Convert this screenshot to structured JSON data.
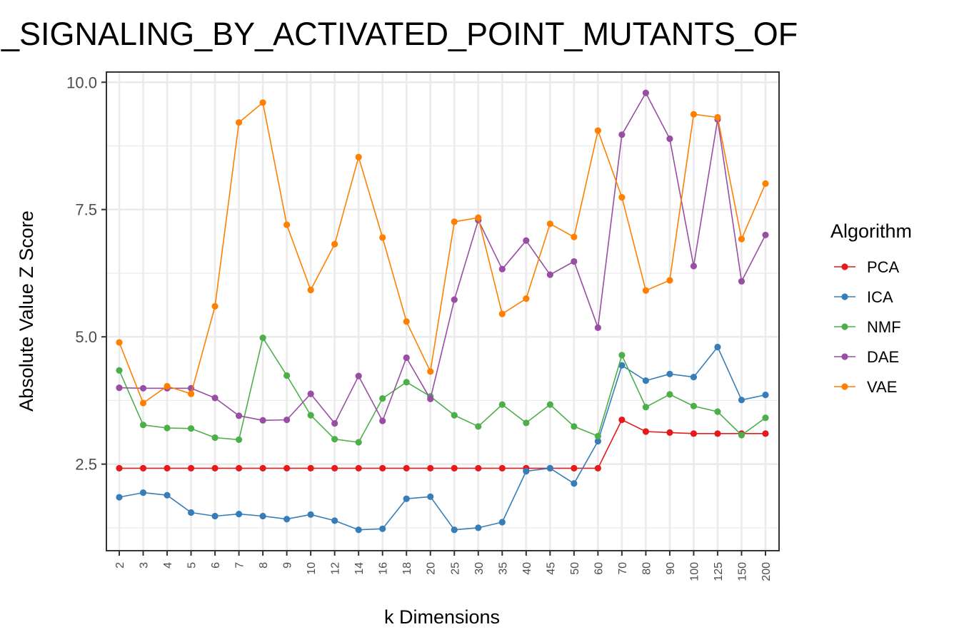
{
  "chart_data": {
    "type": "line",
    "title": "_SIGNALING_BY_ACTIVATED_POINT_MUTANTS_OF",
    "xlabel": "k Dimensions",
    "ylabel": "Absolute Value Z Score",
    "categories": [
      "2",
      "3",
      "4",
      "5",
      "6",
      "7",
      "8",
      "9",
      "10",
      "12",
      "14",
      "16",
      "18",
      "20",
      "25",
      "30",
      "35",
      "40",
      "45",
      "50",
      "60",
      "70",
      "80",
      "90",
      "100",
      "125",
      "150",
      "200"
    ],
    "ylim": [
      0.8,
      10.2
    ],
    "yticks": [
      2.5,
      5.0,
      7.5,
      10.0
    ],
    "ytick_labels": [
      "2.5",
      "5.0",
      "7.5",
      "10.0"
    ],
    "grid": true,
    "legend": {
      "title": "Algorithm",
      "position": "right"
    },
    "series": [
      {
        "name": "PCA",
        "color": "#e41a1c",
        "values": [
          2.42,
          2.42,
          2.42,
          2.42,
          2.42,
          2.42,
          2.42,
          2.42,
          2.42,
          2.42,
          2.42,
          2.42,
          2.42,
          2.42,
          2.42,
          2.42,
          2.42,
          2.42,
          2.42,
          2.42,
          2.42,
          3.37,
          3.14,
          3.12,
          3.1,
          3.1,
          3.1,
          3.1
        ]
      },
      {
        "name": "ICA",
        "color": "#377eb8",
        "values": [
          1.85,
          1.94,
          1.89,
          1.55,
          1.48,
          1.52,
          1.48,
          1.42,
          1.51,
          1.39,
          1.21,
          1.23,
          1.82,
          1.86,
          1.21,
          1.25,
          1.36,
          2.36,
          2.42,
          2.12,
          2.95,
          4.44,
          4.14,
          4.27,
          4.21,
          4.8,
          3.76,
          3.86
        ]
      },
      {
        "name": "NMF",
        "color": "#4daf4a",
        "values": [
          4.34,
          3.27,
          3.21,
          3.2,
          3.02,
          2.98,
          4.98,
          4.24,
          3.46,
          2.99,
          2.93,
          3.79,
          4.11,
          3.83,
          3.46,
          3.24,
          3.67,
          3.31,
          3.67,
          3.24,
          3.05,
          4.64,
          3.62,
          3.87,
          3.64,
          3.53,
          3.07,
          3.41
        ]
      },
      {
        "name": "DAE",
        "color": "#984ea3",
        "values": [
          4.0,
          3.99,
          3.99,
          3.99,
          3.8,
          3.45,
          3.36,
          3.37,
          3.88,
          3.3,
          4.23,
          3.35,
          4.59,
          3.78,
          5.73,
          7.29,
          6.33,
          6.89,
          6.22,
          6.48,
          5.18,
          8.97,
          9.79,
          8.89,
          6.39,
          9.27,
          6.09,
          7.0
        ]
      },
      {
        "name": "VAE",
        "color": "#ff7f00",
        "values": [
          4.89,
          3.7,
          4.03,
          3.88,
          5.6,
          9.21,
          9.6,
          7.2,
          5.92,
          6.82,
          8.53,
          6.95,
          5.3,
          4.32,
          7.26,
          7.34,
          5.45,
          5.75,
          7.22,
          6.96,
          9.05,
          7.74,
          5.91,
          6.11,
          9.37,
          9.31,
          6.92,
          8.01
        ]
      }
    ]
  }
}
